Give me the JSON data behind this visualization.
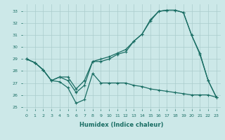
{
  "xlabel": "Humidex (Indice chaleur)",
  "background_color": "#cce8e8",
  "grid_color": "#aacccc",
  "line_color": "#1a6e64",
  "xlim": [
    -0.5,
    23.5
  ],
  "ylim": [
    24.8,
    33.6
  ],
  "yticks": [
    25,
    26,
    27,
    28,
    29,
    30,
    31,
    32,
    33
  ],
  "xticks": [
    0,
    1,
    2,
    3,
    4,
    5,
    6,
    7,
    8,
    9,
    10,
    11,
    12,
    13,
    14,
    15,
    16,
    17,
    18,
    19,
    20,
    21,
    22,
    23
  ],
  "line1_x": [
    0,
    1,
    2,
    3,
    4,
    5,
    6,
    7,
    8,
    9,
    10,
    11,
    12,
    13,
    14,
    15,
    16,
    17,
    18,
    19,
    20,
    21,
    22,
    23
  ],
  "line1_y": [
    29.0,
    28.7,
    28.1,
    27.2,
    27.1,
    26.6,
    25.3,
    25.6,
    27.8,
    27.0,
    27.0,
    27.0,
    27.0,
    26.8,
    26.7,
    26.5,
    26.4,
    26.3,
    26.2,
    26.1,
    26.0,
    26.0,
    26.0,
    25.8
  ],
  "line2_x": [
    0,
    1,
    2,
    3,
    4,
    5,
    6,
    7,
    8,
    9,
    10,
    11,
    12,
    13,
    14,
    15,
    16,
    17,
    18,
    19,
    20,
    21,
    22,
    23
  ],
  "line2_y": [
    29.0,
    28.7,
    28.1,
    27.2,
    27.5,
    27.2,
    26.2,
    26.8,
    28.8,
    29.0,
    29.2,
    29.5,
    29.8,
    30.5,
    31.1,
    32.2,
    33.0,
    33.1,
    33.1,
    32.9,
    31.0,
    29.4,
    27.2,
    25.8
  ],
  "line3_x": [
    0,
    1,
    2,
    3,
    4,
    5,
    6,
    7,
    8,
    9,
    10,
    11,
    12,
    13,
    14,
    15,
    16,
    17,
    18,
    19,
    20,
    21,
    22,
    23
  ],
  "line3_y": [
    29.0,
    28.7,
    28.1,
    27.2,
    27.5,
    27.5,
    26.5,
    27.2,
    28.8,
    28.8,
    29.0,
    29.4,
    29.6,
    30.5,
    31.1,
    32.3,
    33.0,
    33.1,
    33.1,
    32.9,
    31.0,
    29.5,
    27.2,
    25.8
  ],
  "marker": "+",
  "markersize": 3,
  "linewidth": 0.9
}
